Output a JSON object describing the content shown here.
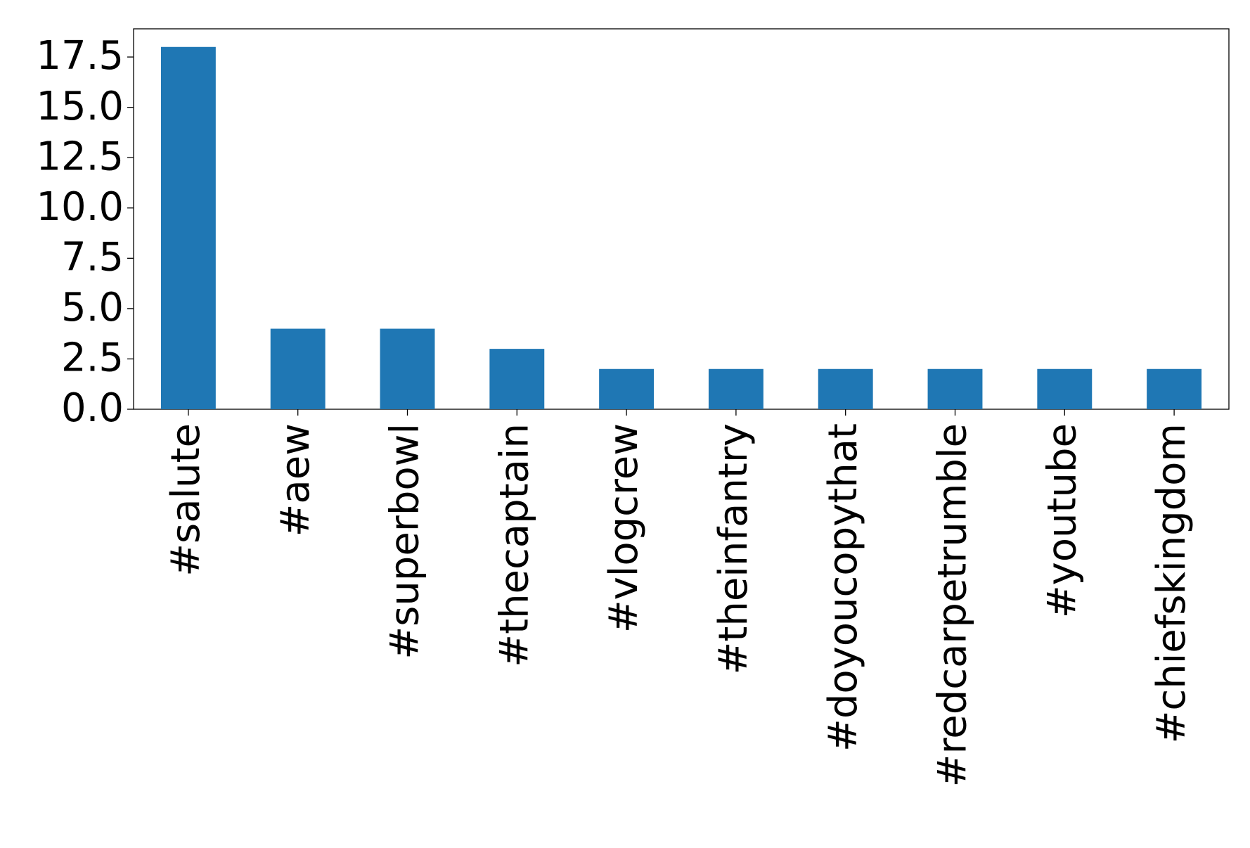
{
  "chart_data": {
    "type": "bar",
    "categories": [
      "#salute",
      "#aew",
      "#superbowl",
      "#thecaptain",
      "#vlogcrew",
      "#theinfantry",
      "#doyoucopythat",
      "#redcarpetrumble",
      "#youtube",
      "#chiefskingdom"
    ],
    "values": [
      18,
      4,
      4,
      3,
      2,
      2,
      2,
      2,
      2,
      2
    ],
    "color": "#1f77b4",
    "ylim": [
      0,
      18.9
    ],
    "yticks": [
      {
        "value": 0,
        "label": "0.0"
      },
      2.5,
      {
        "value": 5,
        "label": "5.0"
      },
      7.5,
      {
        "value": 10,
        "label": "10.0"
      },
      12.5,
      {
        "value": 15,
        "label": "15.0"
      },
      17.5
    ],
    "grid": false
  }
}
